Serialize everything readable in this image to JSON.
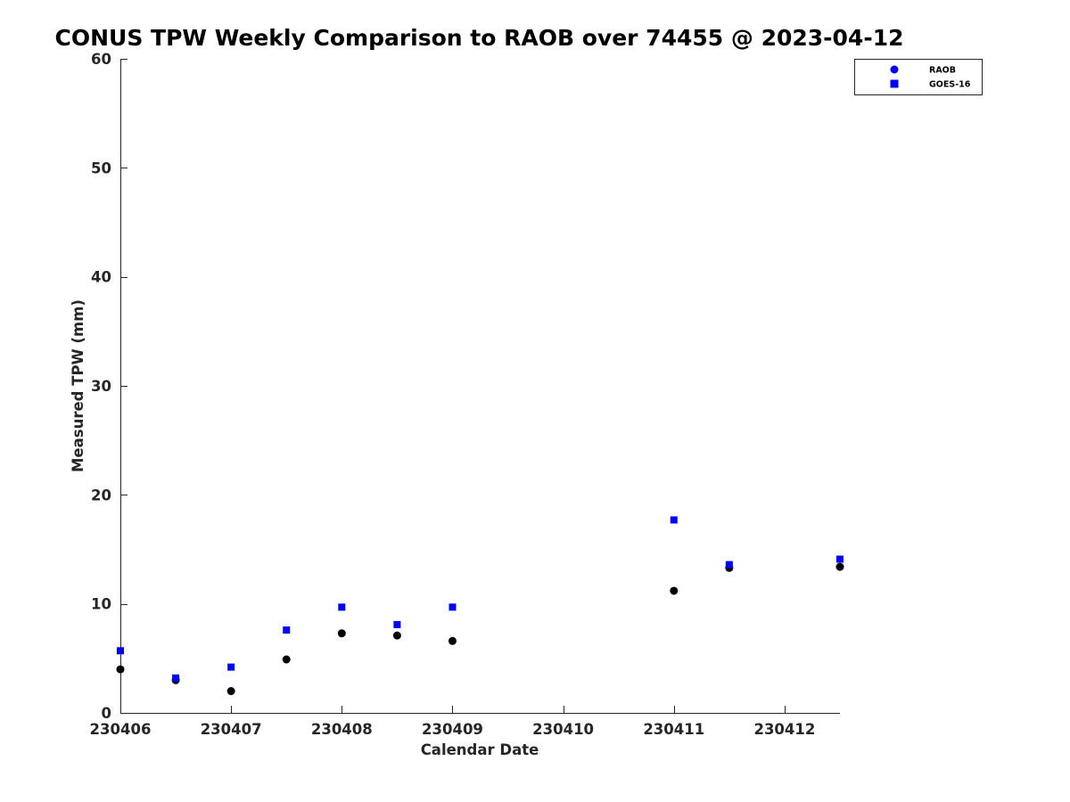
{
  "chart_data": {
    "type": "scatter",
    "title": "CONUS TPW Weekly Comparison to RAOB over 74455 @ 2023-04-12",
    "xlabel": "Calendar Date",
    "ylabel": "Measured TPW (mm)",
    "x_tick_labels": [
      "230406",
      "230407",
      "230408",
      "230409",
      "230410",
      "230411",
      "230412"
    ],
    "xlim": [
      "2023-04-06 00:00",
      "2023-04-12 12:00"
    ],
    "ylim": [
      0,
      60
    ],
    "y_ticks": [
      0,
      10,
      20,
      30,
      40,
      50,
      60
    ],
    "grid": false,
    "legend_position": "top-right",
    "series": [
      {
        "name": "RAOB",
        "marker": "circle",
        "color": "#000000",
        "legend_color": "#0000ff",
        "points": [
          {
            "x": "2023-04-06 00:00",
            "y": 4.0
          },
          {
            "x": "2023-04-06 12:00",
            "y": 3.0
          },
          {
            "x": "2023-04-07 00:00",
            "y": 2.0
          },
          {
            "x": "2023-04-07 12:00",
            "y": 4.9
          },
          {
            "x": "2023-04-08 00:00",
            "y": 7.3
          },
          {
            "x": "2023-04-08 12:00",
            "y": 7.1
          },
          {
            "x": "2023-04-09 00:00",
            "y": 6.6
          },
          {
            "x": "2023-04-11 00:00",
            "y": 11.2
          },
          {
            "x": "2023-04-11 12:00",
            "y": 13.3
          },
          {
            "x": "2023-04-12 12:00",
            "y": 13.4
          }
        ]
      },
      {
        "name": "GOES-16",
        "marker": "square",
        "color": "#0000ff",
        "points": [
          {
            "x": "2023-04-06 00:00",
            "y": 5.7
          },
          {
            "x": "2023-04-06 12:00",
            "y": 3.2
          },
          {
            "x": "2023-04-07 00:00",
            "y": 4.2
          },
          {
            "x": "2023-04-07 12:00",
            "y": 7.6
          },
          {
            "x": "2023-04-08 00:00",
            "y": 9.7
          },
          {
            "x": "2023-04-08 12:00",
            "y": 8.1
          },
          {
            "x": "2023-04-09 00:00",
            "y": 9.7
          },
          {
            "x": "2023-04-11 00:00",
            "y": 17.7
          },
          {
            "x": "2023-04-11 12:00",
            "y": 13.6
          },
          {
            "x": "2023-04-12 12:00",
            "y": 14.1
          }
        ]
      }
    ]
  }
}
